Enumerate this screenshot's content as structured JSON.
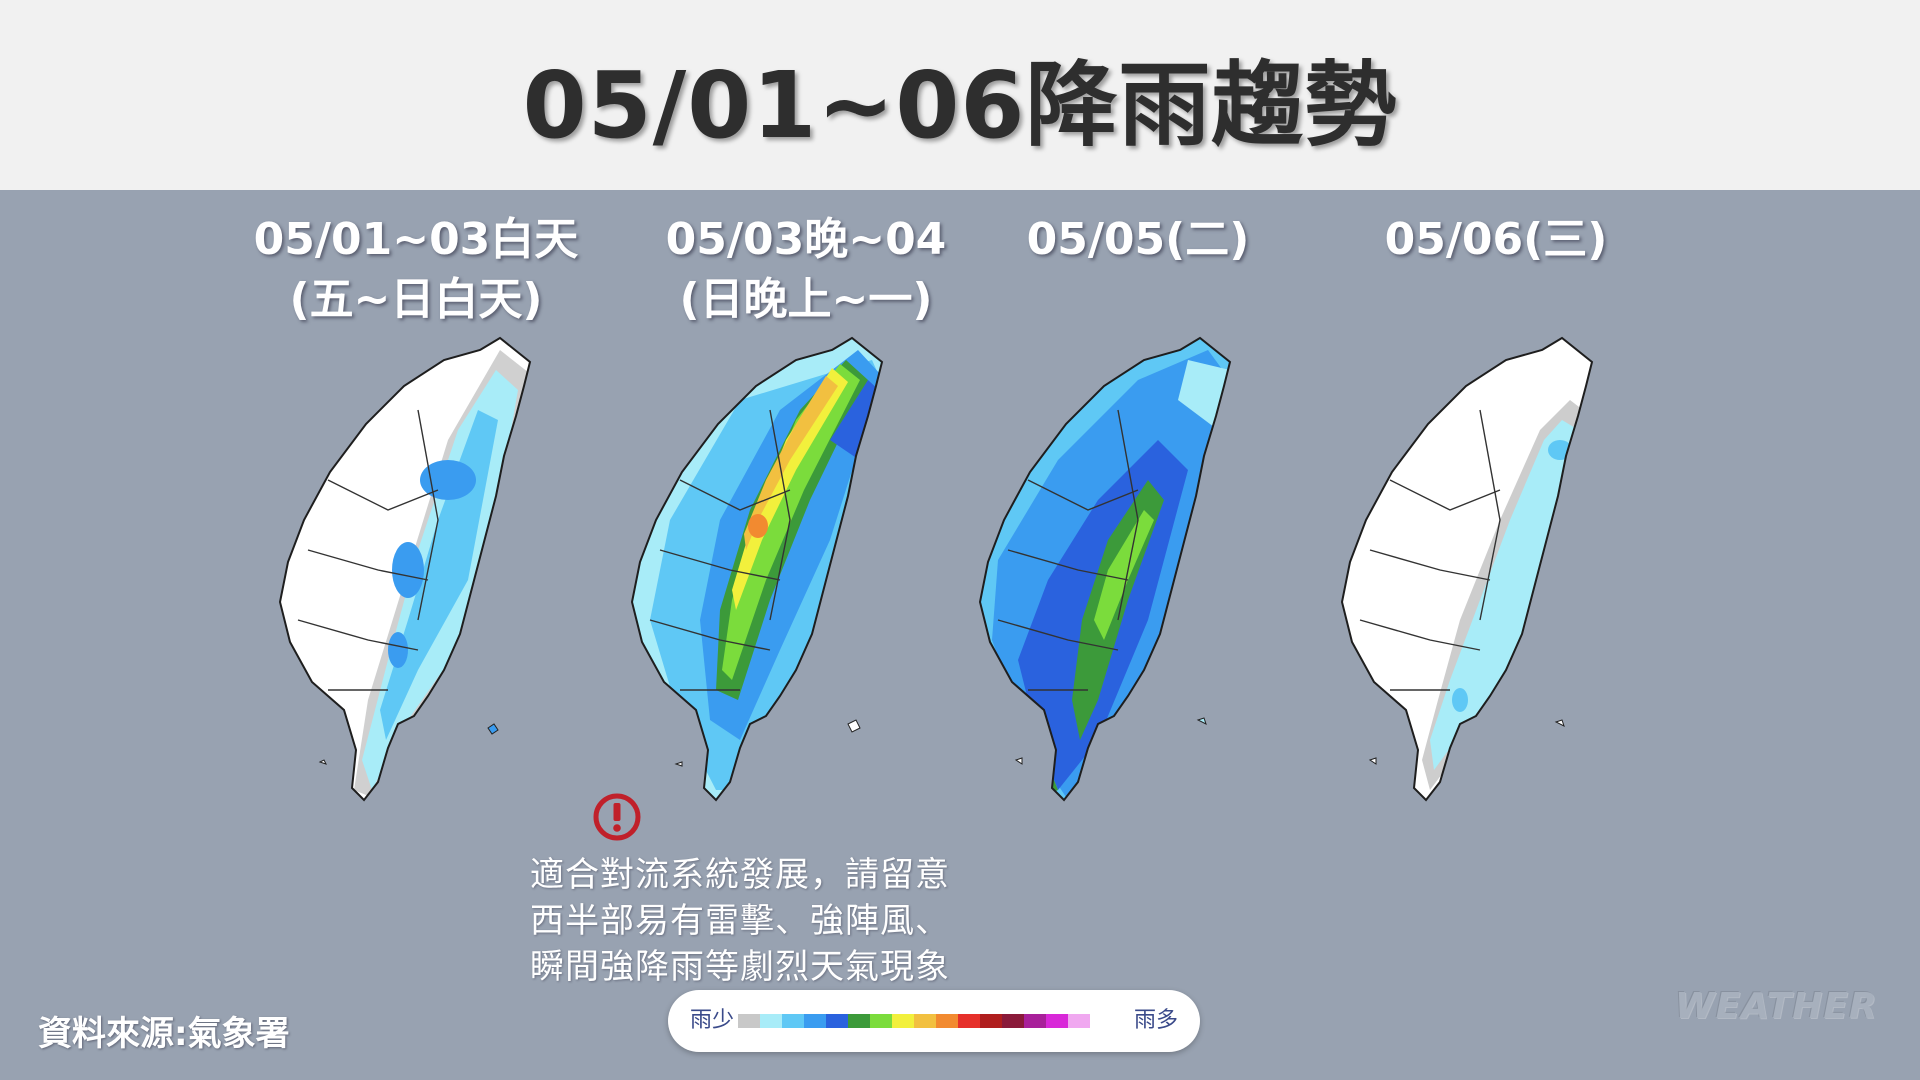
{
  "title": "05/01~06降雨趨勢",
  "panels": [
    {
      "line1": "05/01~03白天",
      "line2": "(五~日白天)",
      "rain_level": "light"
    },
    {
      "line1": "05/03晚~04",
      "line2": "(日晚上~一)",
      "rain_level": "heavy"
    },
    {
      "line1": "05/05(二)",
      "line2": "",
      "rain_level": "moderate"
    },
    {
      "line1": "05/06(三)",
      "line2": "",
      "rain_level": "very-light"
    }
  ],
  "warning": {
    "icon": "exclamation-circle-icon",
    "line1": "適合對流系統發展，請留意",
    "line2": "西半部易有雷擊、強陣風、",
    "line3": "瞬間強降雨等劇烈天氣現象"
  },
  "source": "資料來源:氣象署",
  "legend": {
    "low": "雨少",
    "high": "雨多",
    "colors": [
      "#c8c8c8",
      "#a8ecf8",
      "#5fc8f5",
      "#3a9cf0",
      "#2a62de",
      "#3c9a3a",
      "#7bdc3c",
      "#f2f03c",
      "#f2c040",
      "#f28a30",
      "#e6302a",
      "#b01e1e",
      "#8a1a3a",
      "#a8209a",
      "#d828d8",
      "#f0a8f0"
    ]
  },
  "watermark": "WEATHER",
  "colors": {
    "header_bg": "#f1f1f1",
    "background": "#98a2b1",
    "warning_red": "#c0202a"
  }
}
